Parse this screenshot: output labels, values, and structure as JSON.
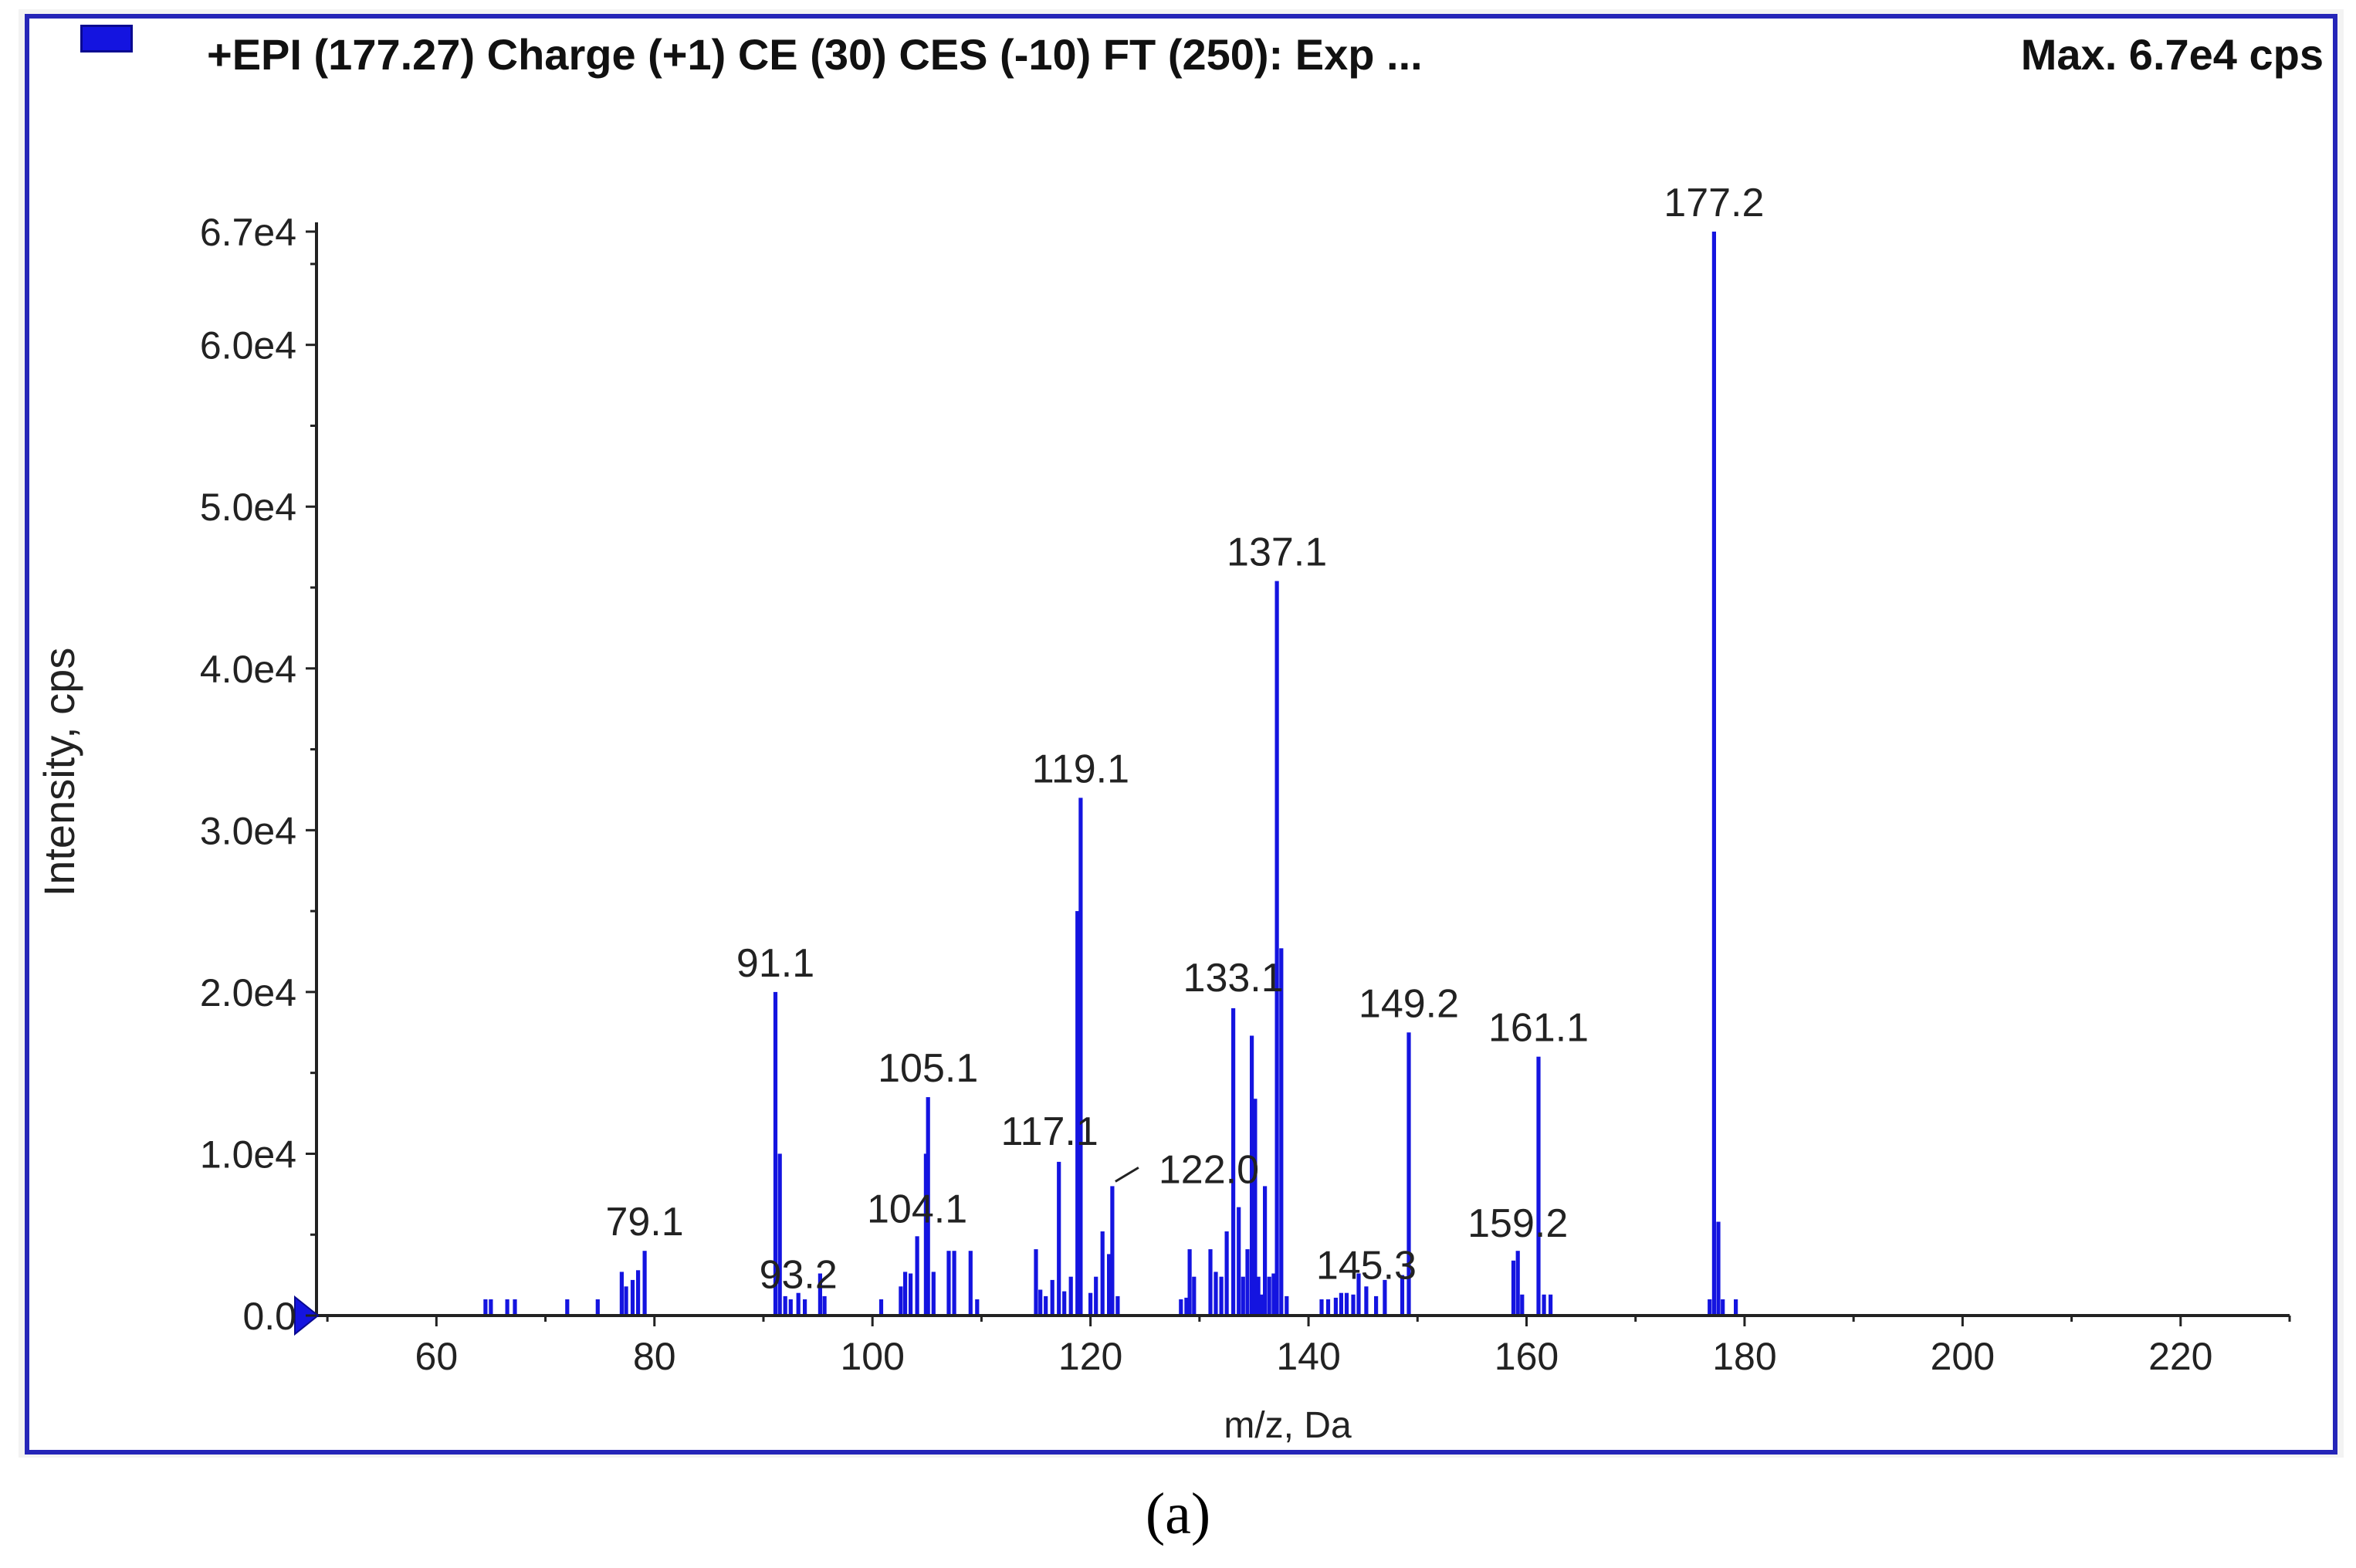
{
  "header": {
    "title": "+EPI (177.27) Charge (+1) CE (30) CES (-10) FT (250): Exp ...",
    "max": "Max. 6.7e4 cps"
  },
  "caption": "(a)",
  "colors": {
    "bars": "#1414e0",
    "frame": "#2525b8",
    "axis": "#222222",
    "text": "#222222"
  },
  "chart_data": {
    "type": "bar",
    "title": "",
    "xlabel": "m/z, Da",
    "ylabel": "Intensity, cps",
    "xlim": [
      49,
      230
    ],
    "ylim": [
      0,
      67000
    ],
    "x_ticks": [
      "60",
      "80",
      "100",
      "120",
      "140",
      "160",
      "180",
      "200",
      "220"
    ],
    "y_ticks": [
      "0.0",
      "1.0e4",
      "2.0e4",
      "3.0e4",
      "4.0e4",
      "5.0e4",
      "6.0e4",
      "6.7e4"
    ],
    "y_tick_values": [
      0,
      10000,
      20000,
      30000,
      40000,
      50000,
      60000,
      67000
    ],
    "grid": false,
    "x": [
      64.5,
      65.0,
      66.5,
      67.2,
      72.0,
      74.8,
      77.0,
      77.4,
      78.0,
      78.5,
      79.1,
      91.1,
      91.5,
      92.0,
      92.5,
      93.2,
      93.8,
      95.2,
      95.6,
      100.8,
      102.6,
      103.0,
      103.5,
      104.1,
      104.9,
      105.1,
      105.6,
      107.0,
      107.5,
      109.0,
      109.6,
      115.0,
      115.4,
      115.9,
      116.5,
      117.1,
      117.6,
      118.2,
      118.8,
      119.1,
      120.0,
      120.5,
      121.1,
      121.7,
      122.0,
      122.5,
      128.3,
      128.8,
      129.1,
      129.5,
      131.0,
      131.5,
      132.0,
      132.5,
      133.1,
      133.6,
      134.0,
      134.4,
      134.8,
      135.1,
      135.4,
      135.7,
      136.0,
      136.4,
      136.8,
      137.1,
      137.5,
      138.0,
      141.2,
      141.8,
      142.5,
      143.0,
      143.5,
      144.1,
      144.6,
      145.3,
      146.2,
      147.0,
      148.6,
      149.2,
      158.8,
      159.2,
      159.6,
      161.1,
      161.6,
      162.2,
      176.8,
      177.2,
      177.6,
      178.0,
      179.2
    ],
    "values": [
      1000,
      1000,
      1000,
      1000,
      1000,
      1000,
      2700,
      1800,
      2200,
      2800,
      4000,
      20000,
      10000,
      1200,
      1000,
      1400,
      1000,
      2600,
      1200,
      1000,
      1800,
      2700,
      2600,
      4900,
      10000,
      13500,
      2700,
      4000,
      4000,
      4000,
      1000,
      4100,
      1600,
      1200,
      2200,
      9500,
      1500,
      2400,
      25000,
      32000,
      1400,
      2400,
      5200,
      3800,
      8000,
      1200,
      1000,
      1100,
      4100,
      2400,
      4100,
      2700,
      2400,
      5200,
      19000,
      6700,
      2400,
      4100,
      17300,
      13400,
      2400,
      1300,
      8000,
      2400,
      2600,
      45400,
      22700,
      1200,
      1000,
      1000,
      1100,
      1400,
      1400,
      1300,
      2600,
      1800,
      1200,
      2200,
      2500,
      17500,
      3400,
      4000,
      1300,
      16000,
      1300,
      1300,
      1000,
      67000,
      5800,
      1000,
      1000
    ],
    "peak_labels": [
      {
        "text": "79.1",
        "x": 79.1,
        "y": 4000
      },
      {
        "text": "91.1",
        "x": 91.1,
        "y": 20000
      },
      {
        "text": "93.2",
        "x": 93.2,
        "y": 1400
      },
      {
        "text": "104.1",
        "x": 104.1,
        "y": 4900
      },
      {
        "text": "105.1",
        "x": 105.1,
        "y": 13500
      },
      {
        "text": "117.1",
        "x": 117.1,
        "y": 9500
      },
      {
        "text": "119.1",
        "x": 119.1,
        "y": 32000
      },
      {
        "text": "122.0",
        "x": 122.0,
        "y": 8000
      },
      {
        "text": "133.1",
        "x": 133.1,
        "y": 19000
      },
      {
        "text": "137.1",
        "x": 137.1,
        "y": 45400
      },
      {
        "text": "145.3",
        "x": 145.3,
        "y": 1800
      },
      {
        "text": "149.2",
        "x": 149.2,
        "y": 17500
      },
      {
        "text": "159.2",
        "x": 159.2,
        "y": 4000
      },
      {
        "text": "161.1",
        "x": 161.1,
        "y": 16000
      },
      {
        "text": "177.2",
        "x": 177.2,
        "y": 67000
      }
    ]
  }
}
